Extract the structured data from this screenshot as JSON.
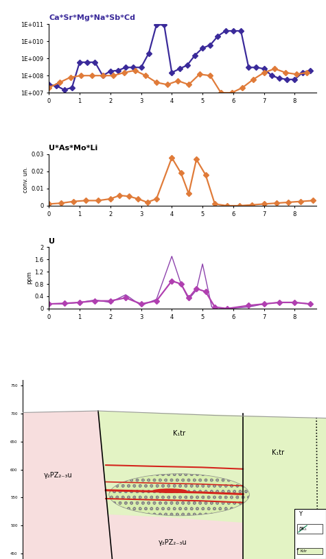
{
  "chart_data": [
    {
      "type": "line",
      "title": "Ca*Sr*Mg*Na*Sb*Cd",
      "log": "y",
      "xlim": [
        0,
        8.7
      ],
      "xticks": [
        0,
        1,
        2,
        3,
        4,
        5,
        6,
        7,
        8
      ],
      "ylim": [
        10000000.0,
        100000000000.0
      ],
      "yticks": [
        {
          "value": 10000000.0,
          "label": "1E+007"
        },
        {
          "value": 100000000.0,
          "label": "1E+008"
        },
        {
          "value": 1000000000.0,
          "label": "1E+009"
        },
        {
          "value": 10000000000.0,
          "label": "1E+010"
        },
        {
          "value": 100000000000.0,
          "label": "1E+011"
        }
      ],
      "series": [
        {
          "color": "#3a2a9a",
          "marker": "diamond",
          "line_style": "solid",
          "x": [
            0,
            0.25,
            0.5,
            0.75,
            1.0,
            1.25,
            1.5,
            1.75,
            2.0,
            2.25,
            2.5,
            2.75,
            3.0,
            3.25,
            3.5,
            3.75,
            4.0,
            4.25,
            4.5,
            4.75,
            5.0,
            5.25,
            5.5,
            5.75,
            6.0,
            6.25,
            6.5,
            6.75,
            7.0,
            7.25,
            7.5,
            7.75,
            8.0,
            8.25,
            8.5
          ],
          "values": [
            30000000.0,
            25000000.0,
            15000000.0,
            20000000.0,
            600000000.0,
            600000000.0,
            600000000.0,
            100000000.0,
            180000000.0,
            200000000.0,
            300000000.0,
            300000000.0,
            300000000.0,
            2000000000.0,
            90000000000.0,
            90000000000.0,
            150000000.0,
            250000000.0,
            400000000.0,
            1500000000.0,
            4000000000.0,
            6000000000.0,
            20000000000.0,
            40000000000.0,
            40000000000.0,
            40000000000.0,
            300000000.0,
            300000000.0,
            250000000.0,
            100000000.0,
            70000000.0,
            60000000.0,
            60000000.0,
            150000000.0,
            200000000.0
          ]
        },
        {
          "color": "#e07b39",
          "marker": "diamond",
          "line_style": "solid",
          "x": [
            0,
            0.35,
            0.7,
            1.05,
            1.4,
            1.75,
            2.1,
            2.45,
            2.8,
            3.15,
            3.5,
            3.85,
            4.2,
            4.55,
            4.9,
            5.25,
            5.6,
            5.95,
            6.3,
            6.65,
            7.0,
            7.35,
            7.7,
            8.05,
            8.4
          ],
          "values": [
            20000000.0,
            40000000.0,
            80000000.0,
            100000000.0,
            100000000.0,
            100000000.0,
            100000000.0,
            150000000.0,
            200000000.0,
            100000000.0,
            40000000.0,
            30000000.0,
            50000000.0,
            30000000.0,
            120000000.0,
            100000000.0,
            10000000.0,
            10000000.0,
            20000000.0,
            60000000.0,
            150000000.0,
            250000000.0,
            150000000.0,
            120000000.0,
            150000000.0
          ]
        }
      ]
    },
    {
      "type": "line",
      "title": "U*As*Mo*Li",
      "y_label": "conv. un.",
      "xlim": [
        0,
        8.7
      ],
      "xticks": [
        0,
        1,
        2,
        3,
        4,
        5,
        6,
        7,
        8
      ],
      "ylim": [
        0,
        0.03
      ],
      "yticks": [
        0,
        0.01,
        0.02,
        0.03
      ],
      "series": [
        {
          "color": "#e07b39",
          "marker": "diamond",
          "line_style": "solid",
          "x": [
            0,
            0.4,
            0.8,
            1.2,
            1.6,
            2.0,
            2.3,
            2.6,
            2.9,
            3.2,
            3.5,
            4.0,
            4.3,
            4.55,
            4.8,
            5.1,
            5.4,
            5.8,
            6.2,
            6.6,
            7.0,
            7.4,
            7.8,
            8.2,
            8.6
          ],
          "values": [
            0.001,
            0.0015,
            0.0025,
            0.003,
            0.003,
            0.004,
            0.006,
            0.0055,
            0.004,
            0.002,
            0.004,
            0.028,
            0.019,
            0.007,
            0.027,
            0.018,
            0.001,
            0,
            0,
            0.0005,
            0.001,
            0.0015,
            0.002,
            0.0025,
            0.003
          ]
        }
      ]
    },
    {
      "type": "line",
      "title": "U",
      "y_label": "ppm",
      "xlim": [
        0,
        8.7
      ],
      "xticks": [
        0,
        1,
        2,
        3,
        4,
        5,
        6,
        7,
        8
      ],
      "ylim": [
        0,
        2
      ],
      "yticks": [
        0,
        0.4,
        0.8,
        1.2,
        1.6,
        2
      ],
      "series": [
        {
          "color": "#8e44ad",
          "marker": "none",
          "line_style": "solid",
          "x": [
            0,
            0.5,
            1.0,
            1.5,
            2.0,
            2.5,
            3.0,
            3.5,
            4.0,
            4.3,
            4.55,
            4.8,
            5.0,
            5.3,
            5.8,
            6.5,
            7.0,
            7.5,
            8.0,
            8.5
          ],
          "values": [
            0.15,
            0.15,
            0.2,
            0.28,
            0.2,
            0.45,
            0.1,
            0.3,
            1.7,
            0.8,
            0.3,
            0.6,
            1.45,
            0.05,
            0,
            0.05,
            0.15,
            0.2,
            0.2,
            0.15
          ]
        },
        {
          "color": "#b03fb0",
          "marker": "diamond",
          "line_style": "solid",
          "x": [
            0,
            0.5,
            1.0,
            1.5,
            2.0,
            2.5,
            3.0,
            3.5,
            4.0,
            4.3,
            4.55,
            4.8,
            5.1,
            5.4,
            5.8,
            6.5,
            7.0,
            7.5,
            8.0,
            8.5
          ],
          "values": [
            0.15,
            0.17,
            0.2,
            0.25,
            0.25,
            0.35,
            0.15,
            0.25,
            0.9,
            0.8,
            0.35,
            0.65,
            0.55,
            0.05,
            0,
            0.1,
            0.15,
            0.2,
            0.2,
            0.15
          ]
        }
      ]
    }
  ],
  "diagram": {
    "type": "cross_section",
    "ylim": [
      440,
      760
    ],
    "yticks": [
      450,
      500,
      550,
      600,
      650,
      700,
      750
    ],
    "labels": {
      "granite_left": "γ₂PZ₂₋₃u",
      "granite_bottom": "γ₂PZ₂₋₃u",
      "volcanics_left": "K₁tr",
      "volcanics_right": "K₁tr"
    },
    "legend_box": {
      "top": "Y",
      "item1": "βK₁",
      "item2_letter": "a",
      "item2": "K₁tr"
    }
  }
}
